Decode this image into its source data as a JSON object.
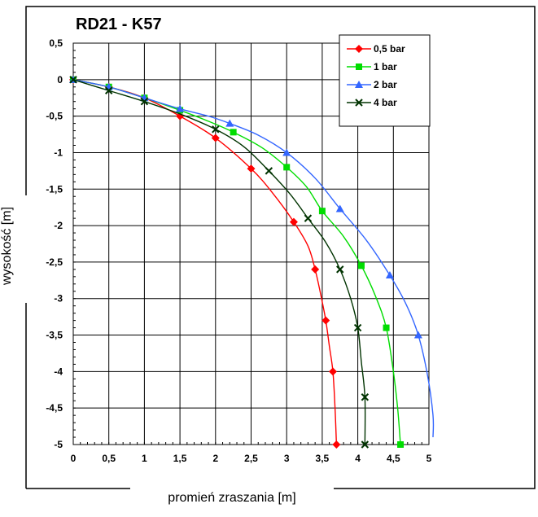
{
  "chart_data": {
    "type": "line",
    "title": "RD21 - K57",
    "xlabel": "promień zraszania [m]",
    "ylabel": "wysokość [m]",
    "xlim": [
      0,
      5
    ],
    "ylim": [
      -5,
      0.5
    ],
    "x_ticks": [
      "0",
      "0,5",
      "1",
      "1,5",
      "2",
      "2,5",
      "3",
      "3,5",
      "4",
      "4,5",
      "5"
    ],
    "y_ticks": [
      "0,5",
      "0",
      "-0,5",
      "-1",
      "-1,5",
      "-2",
      "-2,5",
      "-3",
      "-3,5",
      "-4",
      "-4,5",
      "-5"
    ],
    "grid": true,
    "legend_position": "top-right",
    "series": [
      {
        "name": "0,5 bar",
        "color": "#ff0000",
        "marker": "diamond",
        "points": [
          [
            0,
            0
          ],
          [
            0.5,
            -0.1
          ],
          [
            1,
            -0.25
          ],
          [
            1.5,
            -0.5
          ],
          [
            2,
            -0.8
          ],
          [
            2.5,
            -1.22
          ],
          [
            3.1,
            -1.95
          ],
          [
            3.4,
            -2.6
          ],
          [
            3.55,
            -3.3
          ],
          [
            3.65,
            -4.0
          ],
          [
            3.7,
            -5.0
          ]
        ],
        "line": [
          [
            0,
            0
          ],
          [
            0.5,
            -0.1
          ],
          [
            1,
            -0.25
          ],
          [
            1.5,
            -0.5
          ],
          [
            2,
            -0.8
          ],
          [
            2.5,
            -1.22
          ],
          [
            2.8,
            -1.55
          ],
          [
            3.1,
            -1.95
          ],
          [
            3.3,
            -2.28
          ],
          [
            3.4,
            -2.6
          ],
          [
            3.48,
            -2.95
          ],
          [
            3.55,
            -3.3
          ],
          [
            3.6,
            -3.65
          ],
          [
            3.65,
            -4.0
          ],
          [
            3.68,
            -4.5
          ],
          [
            3.7,
            -5.0
          ]
        ]
      },
      {
        "name": "1 bar",
        "color": "#00dd00",
        "marker": "square",
        "points": [
          [
            0,
            0
          ],
          [
            0.5,
            -0.1
          ],
          [
            1,
            -0.25
          ],
          [
            1.5,
            -0.42
          ],
          [
            2.25,
            -0.72
          ],
          [
            3,
            -1.2
          ],
          [
            3.5,
            -1.8
          ],
          [
            4.05,
            -2.55
          ],
          [
            4.4,
            -3.4
          ],
          [
            4.6,
            -5.0
          ]
        ],
        "line": [
          [
            0,
            0
          ],
          [
            0.5,
            -0.1
          ],
          [
            1,
            -0.25
          ],
          [
            1.5,
            -0.42
          ],
          [
            1.9,
            -0.57
          ],
          [
            2.25,
            -0.72
          ],
          [
            2.65,
            -0.93
          ],
          [
            3,
            -1.2
          ],
          [
            3.28,
            -1.47
          ],
          [
            3.5,
            -1.8
          ],
          [
            3.8,
            -2.15
          ],
          [
            4.05,
            -2.55
          ],
          [
            4.25,
            -2.97
          ],
          [
            4.4,
            -3.4
          ],
          [
            4.5,
            -4.0
          ],
          [
            4.56,
            -4.5
          ],
          [
            4.6,
            -5.0
          ]
        ]
      },
      {
        "name": "2 bar",
        "color": "#3366ff",
        "marker": "triangle",
        "points": [
          [
            0,
            0
          ],
          [
            0.5,
            -0.1
          ],
          [
            1,
            -0.25
          ],
          [
            1.5,
            -0.4
          ],
          [
            2.2,
            -0.6
          ],
          [
            3,
            -1.0
          ],
          [
            3.75,
            -1.77
          ],
          [
            4.45,
            -2.68
          ],
          [
            4.85,
            -3.5
          ]
        ],
        "line": [
          [
            0,
            0
          ],
          [
            0.5,
            -0.1
          ],
          [
            1,
            -0.25
          ],
          [
            1.5,
            -0.4
          ],
          [
            1.9,
            -0.5
          ],
          [
            2.2,
            -0.6
          ],
          [
            2.6,
            -0.76
          ],
          [
            3,
            -1.0
          ],
          [
            3.4,
            -1.35
          ],
          [
            3.75,
            -1.77
          ],
          [
            4.12,
            -2.2
          ],
          [
            4.45,
            -2.68
          ],
          [
            4.68,
            -3.08
          ],
          [
            4.85,
            -3.5
          ],
          [
            4.98,
            -4.05
          ],
          [
            5.1,
            -4.6
          ],
          [
            5.2,
            -4.9
          ]
        ]
      },
      {
        "name": "4 bar",
        "color": "#003300",
        "marker": "x",
        "points": [
          [
            0,
            0
          ],
          [
            0.5,
            -0.15
          ],
          [
            1,
            -0.3
          ],
          [
            2,
            -0.68
          ],
          [
            2.75,
            -1.25
          ],
          [
            3.3,
            -1.9
          ],
          [
            3.75,
            -2.6
          ],
          [
            4,
            -3.4
          ],
          [
            4.1,
            -4.35
          ],
          [
            4.1,
            -5.0
          ]
        ],
        "line": [
          [
            0,
            0
          ],
          [
            0.5,
            -0.15
          ],
          [
            1,
            -0.3
          ],
          [
            1.5,
            -0.47
          ],
          [
            2,
            -0.68
          ],
          [
            2.4,
            -0.92
          ],
          [
            2.75,
            -1.25
          ],
          [
            3.05,
            -1.57
          ],
          [
            3.3,
            -1.9
          ],
          [
            3.55,
            -2.23
          ],
          [
            3.75,
            -2.6
          ],
          [
            3.9,
            -3.0
          ],
          [
            4,
            -3.4
          ],
          [
            4.05,
            -3.87
          ],
          [
            4.1,
            -4.35
          ],
          [
            4.1,
            -5.0
          ]
        ]
      }
    ]
  }
}
